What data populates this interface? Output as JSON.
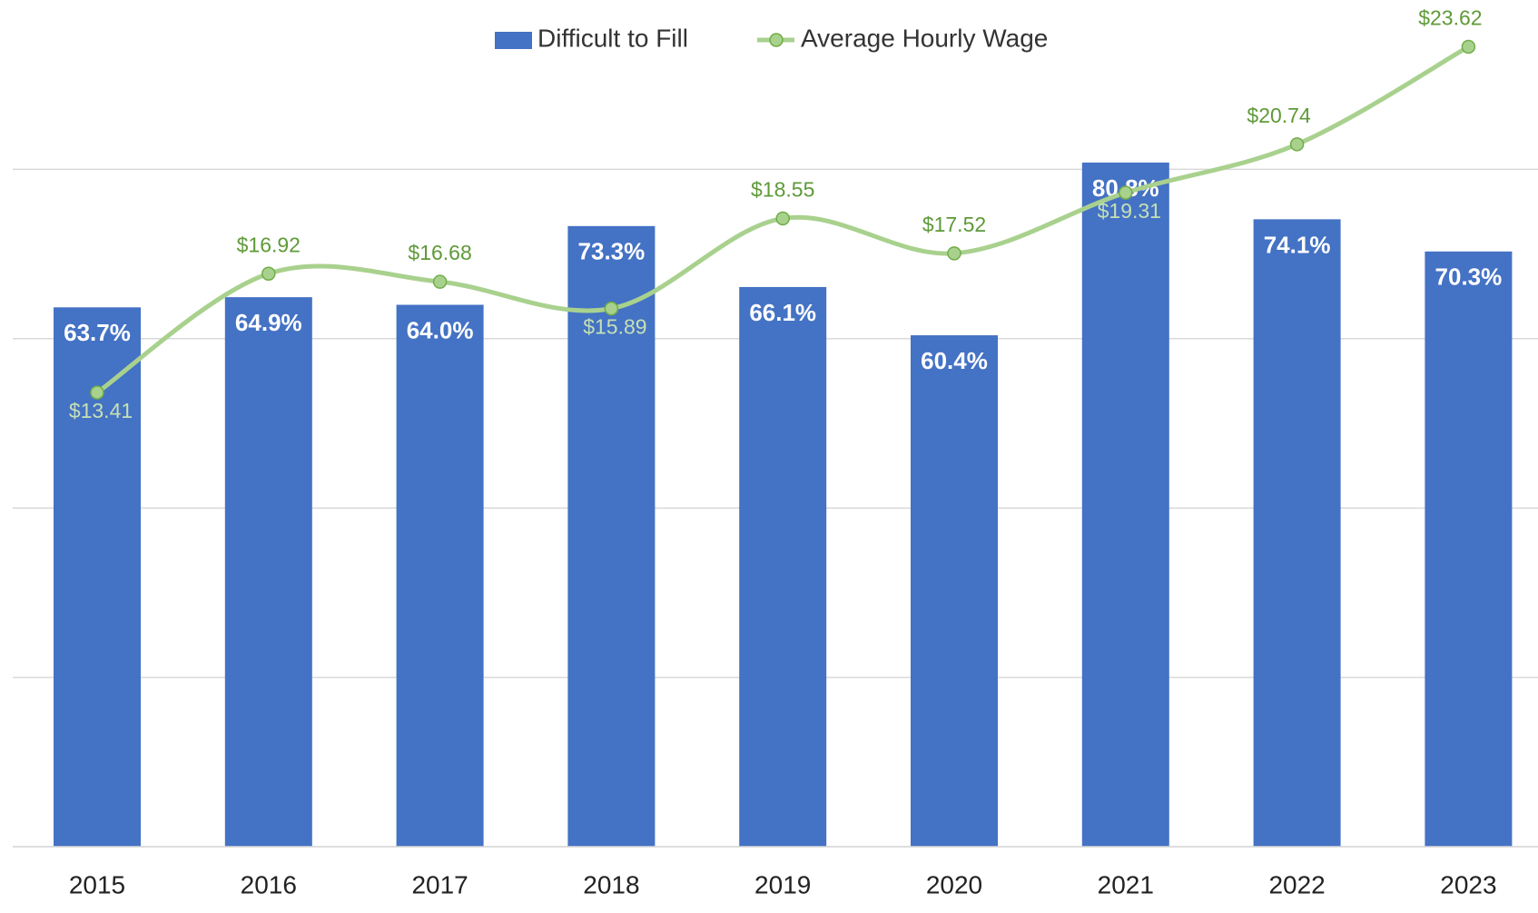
{
  "chart_data": {
    "type": "bar",
    "categories": [
      "2015",
      "2016",
      "2017",
      "2018",
      "2019",
      "2020",
      "2021",
      "2022",
      "2023"
    ],
    "series": [
      {
        "name": "Difficult to Fill",
        "type": "bar",
        "color": "#4472c4",
        "values": [
          63.7,
          64.9,
          64.0,
          73.3,
          66.1,
          60.4,
          80.8,
          74.1,
          70.3
        ],
        "value_labels": [
          "63.7%",
          "64.9%",
          "64.0%",
          "73.3%",
          "66.1%",
          "60.4%",
          "80.8%",
          "74.1%",
          "70.3%"
        ]
      },
      {
        "name": "Average Hourly Wage",
        "type": "line",
        "axis": "y2",
        "color": "#a9d18e",
        "values": [
          13.41,
          16.92,
          16.68,
          15.89,
          18.55,
          17.52,
          19.31,
          20.74,
          23.62
        ],
        "value_labels": [
          "$13.41",
          "$16.92",
          "$16.68",
          "$15.89",
          "$18.55",
          "$17.52",
          "$19.31",
          "$20.74",
          "$23.62"
        ]
      }
    ],
    "ylim": [
      0,
      100
    ],
    "yticks": [
      0,
      20,
      40,
      60,
      80
    ],
    "y2lim": [
      0,
      25
    ],
    "grid": true,
    "legend": "top"
  }
}
